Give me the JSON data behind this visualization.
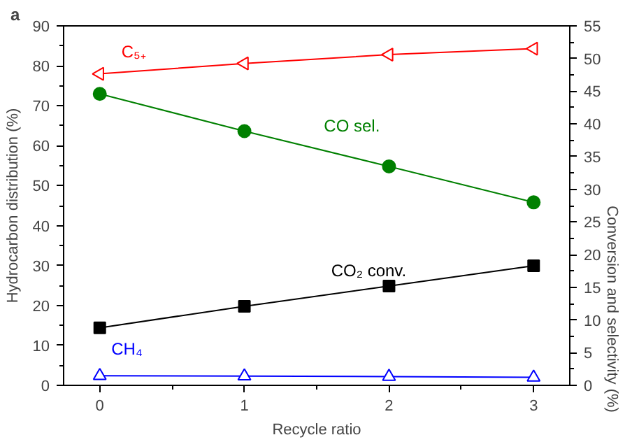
{
  "chart_data": {
    "type": "line",
    "xlabel": "Recycle ratio",
    "ylabel": "Hydrocarbon distribution (%)",
    "y2label": "Conversion and  selectivity (%)",
    "annotations": [
      "a"
    ],
    "x": [
      0,
      1,
      2,
      3
    ],
    "xlim": [
      -0.25,
      3.25
    ],
    "xticks": [
      0,
      1,
      2,
      3
    ],
    "ylim": [
      0,
      90
    ],
    "yticks": [
      0,
      10,
      20,
      30,
      40,
      50,
      60,
      70,
      80,
      90
    ],
    "y2lim": [
      0,
      55
    ],
    "y2ticks": [
      0,
      5,
      10,
      15,
      20,
      25,
      30,
      35,
      40,
      45,
      50,
      55
    ],
    "grid": false,
    "series": [
      {
        "name": "C₅₊",
        "color": "#ff0000",
        "marker": "triangle",
        "values": [
          78.0,
          80.6,
          82.8,
          84.3
        ]
      },
      {
        "name": "CO sel.",
        "color": "#008000",
        "marker": "circle",
        "axis": "y2",
        "values": [
          44.6,
          38.9,
          33.5,
          28.0
        ]
      },
      {
        "name": "CO₂ conv.",
        "color": "#000000",
        "marker": "square",
        "axis": "y2",
        "values": [
          8.8,
          12.1,
          15.2,
          18.3
        ]
      },
      {
        "name": "CH₄",
        "color": "#0000ff",
        "marker": "triangle",
        "values": [
          2.4,
          2.3,
          2.2,
          2.0
        ]
      }
    ]
  }
}
